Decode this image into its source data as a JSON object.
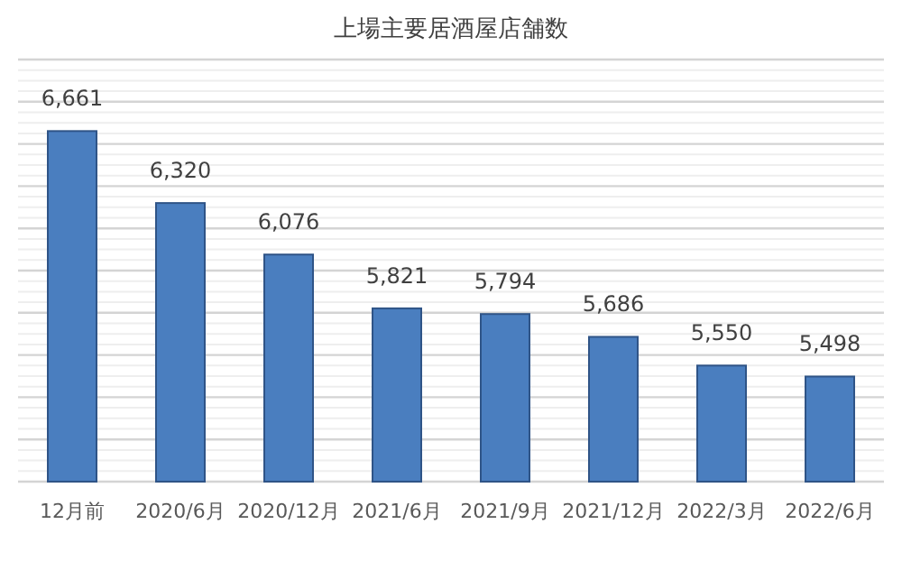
{
  "chart_data": {
    "type": "bar",
    "title": "上場主要居酒屋店舗数",
    "categories": [
      "12月前",
      "2020/6月",
      "2020/12月",
      "2021/6月",
      "2021/9月",
      "2021/12月",
      "2022/3月",
      "2022/6月"
    ],
    "values": [
      6661,
      6320,
      6076,
      5821,
      5794,
      5686,
      5550,
      5498
    ],
    "value_labels": [
      "6,661",
      "6,320",
      "6,076",
      "5,821",
      "5,794",
      "5,686",
      "5,550",
      "5,498"
    ],
    "color": "#4a7ebf",
    "ylim": [
      5000,
      7000
    ],
    "yticks": [
      {
        "value": 5000,
        "label": null
      },
      {
        "value": 5200,
        "label": null
      },
      {
        "value": 5400,
        "label": null
      },
      {
        "value": 5600,
        "label": null
      },
      {
        "value": 5800,
        "label": null
      },
      {
        "value": 6000,
        "label": null
      },
      {
        "value": 6200,
        "label": null
      },
      {
        "value": 6400,
        "label": null
      },
      {
        "value": 6600,
        "label": null
      },
      {
        "value": 6800,
        "label": null
      },
      {
        "value": 7000,
        "label": null
      }
    ],
    "grid": "y"
  }
}
